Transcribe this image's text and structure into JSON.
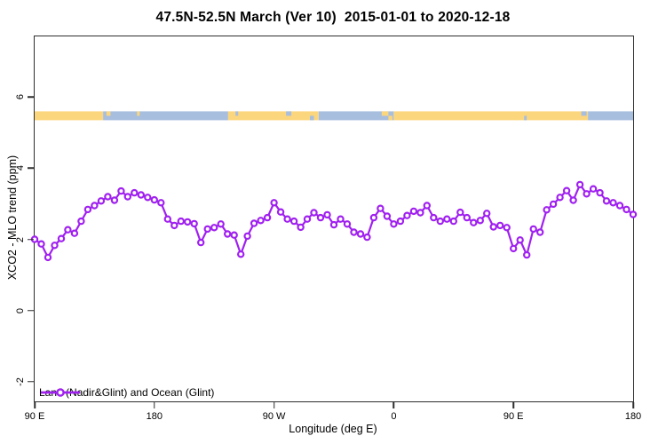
{
  "title": "47.5N-52.5N March (Ver 10)  2015-01-01 to 2020-12-18",
  "chart_data": {
    "type": "line",
    "title": "47.5N-52.5N March (Ver 10)  2015-01-01 to 2020-12-18",
    "xlabel": "Longitude (deg E)",
    "ylabel": "XCO2 - MLO trend (ppm)",
    "legend_position": "bottom-left-inside",
    "grid": false,
    "x_axis": {
      "span_deg": 450,
      "start_longitude_label": "90 E",
      "point_step_deg": 5,
      "tick_positions_deg": [
        0,
        90,
        180,
        270,
        360,
        450
      ],
      "tick_labels": [
        "90 E",
        "180",
        "90 W",
        "0",
        "90 E",
        "180"
      ]
    },
    "y_axis": {
      "ticks": [
        -2,
        0,
        2,
        4,
        6
      ],
      "range": [
        -2.56,
        7.71
      ]
    },
    "series": [
      {
        "name": "Land (Nadir&Glint) and Ocean (Glint)",
        "color": "#A020F0",
        "marker": "open-circle",
        "values": [
          2.0,
          1.87,
          1.49,
          1.83,
          2.02,
          2.27,
          2.17,
          2.51,
          2.84,
          2.95,
          3.08,
          3.2,
          3.1,
          3.36,
          3.2,
          3.31,
          3.25,
          3.18,
          3.11,
          3.03,
          2.57,
          2.39,
          2.51,
          2.49,
          2.44,
          1.91,
          2.29,
          2.33,
          2.43,
          2.15,
          2.12,
          1.58,
          2.09,
          2.45,
          2.53,
          2.61,
          3.03,
          2.77,
          2.57,
          2.51,
          2.34,
          2.57,
          2.75,
          2.61,
          2.69,
          2.41,
          2.57,
          2.43,
          2.2,
          2.15,
          2.06,
          2.61,
          2.87,
          2.65,
          2.43,
          2.51,
          2.67,
          2.79,
          2.75,
          2.95,
          2.61,
          2.51,
          2.57,
          2.51,
          2.76,
          2.61,
          2.47,
          2.53,
          2.73,
          2.35,
          2.39,
          2.33,
          1.74,
          1.98,
          1.56,
          2.29,
          2.2,
          2.83,
          2.99,
          3.18,
          3.37,
          3.1,
          3.54,
          3.28,
          3.42,
          3.31,
          3.08,
          3.03,
          2.95,
          2.84,
          2.7
        ]
      }
    ],
    "surface_band": {
      "description": "land vs ocean indicator strip",
      "y_from": 5.35,
      "y_to": 5.6,
      "land_color": "#FCD67D",
      "ocean_color": "#A7BEDE",
      "segments": [
        {
          "from": 0,
          "to": 51.5,
          "surface": "land"
        },
        {
          "from": 51.5,
          "to": 145.5,
          "surface": "ocean"
        },
        {
          "from": 145.5,
          "to": 213.5,
          "surface": "land"
        },
        {
          "from": 213.5,
          "to": 270,
          "surface": "ocean"
        },
        {
          "from": 270,
          "to": 416,
          "surface": "land"
        },
        {
          "from": 416,
          "to": 450,
          "surface": "ocean"
        }
      ],
      "specks": [
        {
          "at": 54,
          "w": 3,
          "surface": "land",
          "pos": "top"
        },
        {
          "at": 77,
          "w": 2,
          "surface": "land",
          "pos": "top"
        },
        {
          "at": 151,
          "w": 2,
          "surface": "ocean",
          "pos": "top"
        },
        {
          "at": 189,
          "w": 4,
          "surface": "ocean",
          "pos": "top"
        },
        {
          "at": 207,
          "w": 3,
          "surface": "ocean",
          "pos": "bottom"
        },
        {
          "at": 261,
          "w": 5,
          "surface": "land",
          "pos": "top"
        },
        {
          "at": 266,
          "w": 3,
          "surface": "land",
          "pos": "bottom"
        },
        {
          "at": 368,
          "w": 2,
          "surface": "ocean",
          "pos": "bottom"
        },
        {
          "at": 411,
          "w": 4,
          "surface": "ocean",
          "pos": "top"
        }
      ]
    }
  }
}
